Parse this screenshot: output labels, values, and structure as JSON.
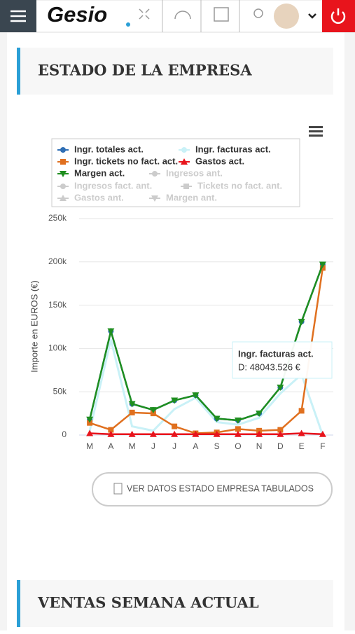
{
  "header": {
    "logo": "Gesio"
  },
  "sections": [
    {
      "title": "ESTADO DE LA EMPRESA"
    },
    {
      "title": "VENTAS SEMANA ACTUAL"
    }
  ],
  "button": {
    "label": "VER DATOS ESTADO EMPRESA TABULADOS"
  },
  "tooltip": {
    "title": "Ingr. facturas act.",
    "text": "D: 48043.526 €"
  },
  "chart_data": {
    "type": "line",
    "y_label": "Importe en EUROS (€)",
    "categories": [
      "M",
      "A",
      "M",
      "J",
      "J",
      "A",
      "S",
      "O",
      "N",
      "D",
      "E",
      "F"
    ],
    "series": [
      {
        "name": "Ingr. totales act.",
        "color": "#2f6fb5",
        "marker": "circle",
        "values": [
          18000,
          120000,
          36000,
          29000,
          40000,
          46000,
          19000,
          17000,
          25000,
          55000,
          131000,
          197000
        ]
      },
      {
        "name": "Ingr. facturas act.",
        "color": "#c9f1f7",
        "marker": "none",
        "values": [
          5000,
          110000,
          10000,
          5000,
          30000,
          43000,
          15000,
          12000,
          20000,
          48043.526,
          70000,
          0
        ]
      },
      {
        "name": "Ingr. tickets no fact. act.",
        "color": "#e0701f",
        "marker": "square",
        "values": [
          14000,
          6000,
          26000,
          25000,
          10000,
          2000,
          3000,
          7000,
          5000,
          6000,
          28000,
          193000
        ]
      },
      {
        "name": "Gastos act.",
        "color": "#e8141c",
        "marker": "triangle",
        "values": [
          2000,
          1000,
          1000,
          1000,
          1000,
          1000,
          1000,
          1000,
          1000,
          1000,
          2000,
          1000
        ]
      },
      {
        "name": "Margen act.",
        "color": "#1f8f1f",
        "marker": "triangle-down",
        "values": [
          18000,
          120000,
          36000,
          29000,
          40000,
          46000,
          19000,
          17000,
          25000,
          55000,
          131000,
          197000
        ]
      }
    ],
    "legend_inactive": [
      "Ingresos ant.",
      "Ingresos fact. ant.",
      "Tickets no fact. ant.",
      "Gastos ant.",
      "Margen ant."
    ],
    "ylim": [
      0,
      250000
    ],
    "yticks": [
      0,
      {
        "value": 50000,
        "label": "50k"
      },
      {
        "value": 100000,
        "label": "100k"
      },
      {
        "value": 150000,
        "label": "150k"
      },
      {
        "value": 200000,
        "label": "200k"
      },
      {
        "value": 250000,
        "label": "250k"
      }
    ],
    "grid": true
  }
}
